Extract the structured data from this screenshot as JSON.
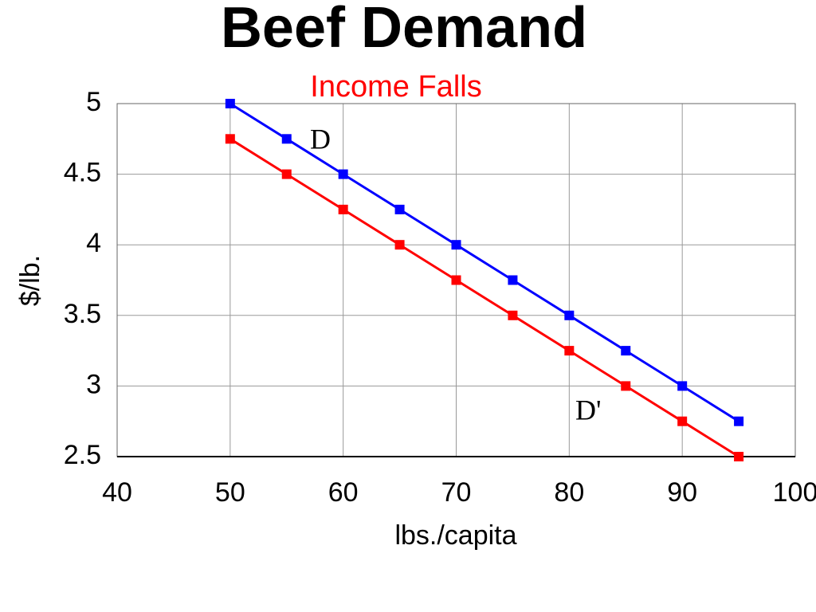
{
  "chart_data": {
    "type": "line",
    "title": "Beef Demand",
    "subtitle": "Income Falls",
    "x_label": "lbs./capita",
    "y_label": "$/lb.",
    "x": [
      50,
      55,
      60,
      65,
      70,
      75,
      80,
      85,
      90,
      95
    ],
    "series": [
      {
        "name": "D",
        "color": "#0000ff",
        "values": [
          5,
          4.75,
          4.5,
          4.25,
          4,
          3.75,
          3.5,
          3.25,
          3,
          2.75
        ]
      },
      {
        "name": "D'",
        "color": "#ff0000",
        "values": [
          4.75,
          4.5,
          4.25,
          4,
          3.75,
          3.5,
          3.25,
          3,
          2.75,
          2.5
        ]
      }
    ],
    "xlim": [
      40,
      100
    ],
    "xticks": [
      40,
      50,
      60,
      70,
      80,
      90,
      100
    ],
    "ylim": [
      2.5,
      5
    ],
    "yticks": [
      2.5,
      3,
      3.5,
      4,
      4.5,
      5
    ],
    "grid": true
  }
}
